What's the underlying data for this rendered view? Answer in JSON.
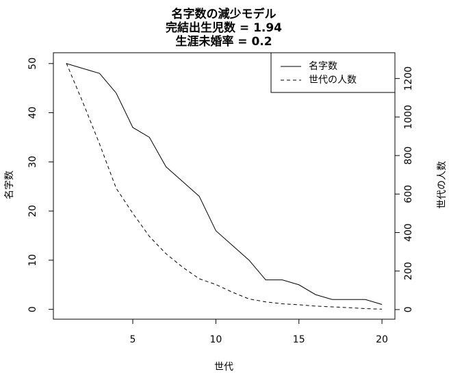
{
  "chart_data": {
    "type": "line",
    "title": "名字数の減少モデル",
    "subtitle": [
      "完結出生児数 = 1.94",
      "生涯未婚率 = 0.2"
    ],
    "x_label": "世代",
    "y_label": "名字数",
    "y2_label": "世代の人数",
    "x": [
      1,
      2,
      3,
      4,
      5,
      6,
      7,
      8,
      9,
      10,
      11,
      12,
      13,
      14,
      15,
      16,
      17,
      18,
      19,
      20
    ],
    "series": [
      {
        "name": "名字数",
        "color": "#000000",
        "linestyle": "solid",
        "values": [
          50,
          49,
          48,
          44,
          37,
          35,
          29,
          26,
          23,
          16,
          13,
          10,
          6,
          6,
          5,
          3,
          2,
          2,
          2,
          1
        ]
      },
      {
        "name": "世代の人数",
        "color": "#000000",
        "linestyle": "dashed",
        "axis": "y2",
        "values": [
          1280,
          1075,
          860,
          630,
          500,
          380,
          290,
          220,
          160,
          130,
          90,
          55,
          40,
          30,
          25,
          18,
          14,
          10,
          5,
          2
        ]
      }
    ],
    "xlim": [
      0.22,
      20.78
    ],
    "xticks": [
      5,
      10,
      15,
      20
    ],
    "ylim": [
      -2,
      52.2
    ],
    "yticks": [
      0,
      10,
      20,
      30,
      40,
      50
    ],
    "y2lim": [
      -50,
      1334
    ],
    "y2ticks": [
      0,
      200,
      400,
      600,
      800,
      1000,
      1200
    ],
    "legend": "top-right",
    "grid": false
  }
}
